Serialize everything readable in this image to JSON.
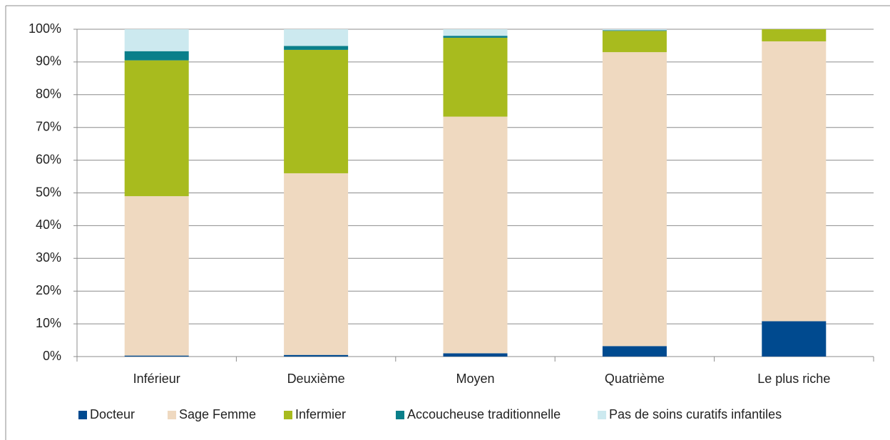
{
  "chart_data": {
    "type": "stacked_bar",
    "categories": [
      "Inférieur",
      "Deuxième",
      "Moyen",
      "Quatrième",
      "Le plus riche"
    ],
    "series": [
      {
        "name": "Docteur",
        "color": "#004a8f",
        "values": [
          0.3,
          0.5,
          1.0,
          3.2,
          10.8
        ]
      },
      {
        "name": "Sage Femme",
        "color": "#efd9c0",
        "values": [
          48.7,
          55.5,
          72.3,
          89.8,
          85.5
        ]
      },
      {
        "name": "Infermier",
        "color": "#a8bb1e",
        "values": [
          41.5,
          37.7,
          24.1,
          6.5,
          3.7
        ]
      },
      {
        "name": "Accoucheuse traditionnelle",
        "color": "#0a7f8a",
        "values": [
          2.8,
          1.2,
          0.6,
          0.2,
          0
        ]
      },
      {
        "name": "Pas de soins curatifs infantiles",
        "color": "#cce9ef",
        "values": [
          6.7,
          5.1,
          2.0,
          0.3,
          0
        ]
      }
    ],
    "ylim": [
      0,
      100
    ],
    "yticks": [
      {
        "value": 0,
        "label": "0%"
      },
      {
        "value": 10,
        "label": "10%"
      },
      {
        "value": 20,
        "label": "20%"
      },
      {
        "value": 30,
        "label": "30%"
      },
      {
        "value": 40,
        "label": "40%"
      },
      {
        "value": 50,
        "label": "50%"
      },
      {
        "value": 60,
        "label": "60%"
      },
      {
        "value": 70,
        "label": "70%"
      },
      {
        "value": 80,
        "label": "80%"
      },
      {
        "value": 90,
        "label": "90%"
      },
      {
        "value": 100,
        "label": "100%"
      }
    ],
    "grid": true,
    "legend": "bottom"
  }
}
